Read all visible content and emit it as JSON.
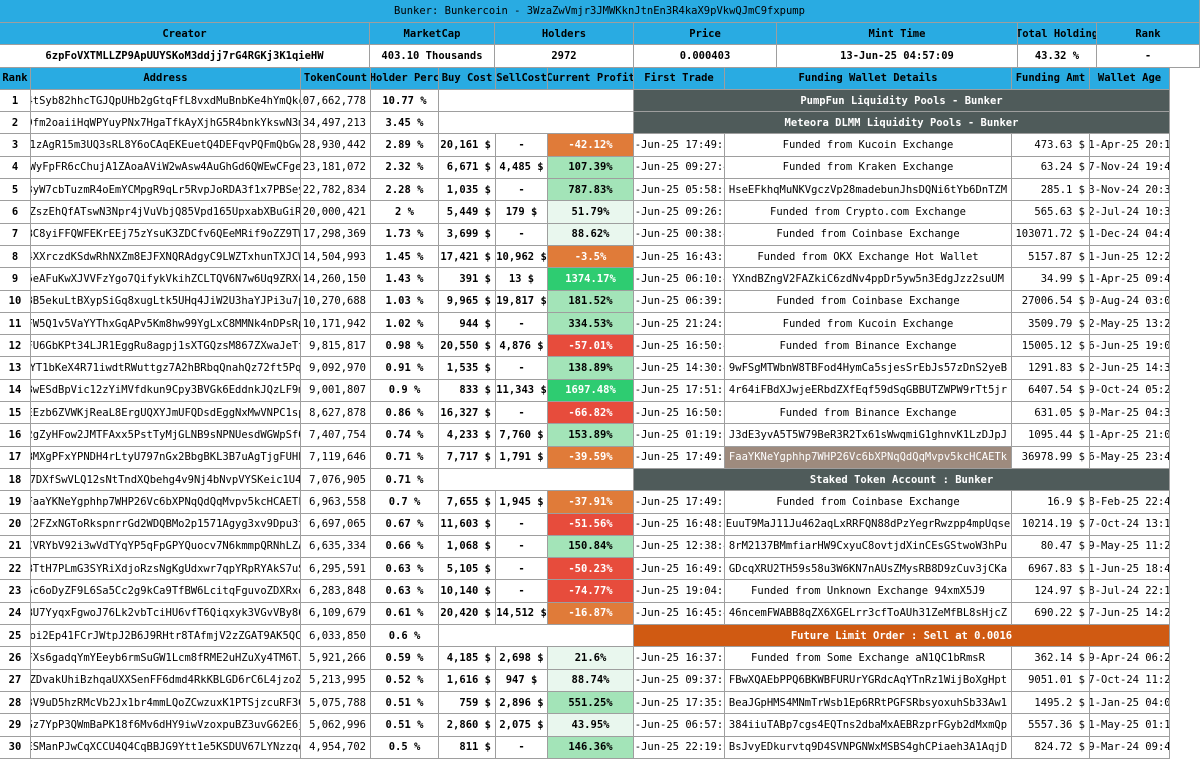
{
  "title": "Bunker: Bunkercoin - 3WzaZwVmjr3JMWKknJtnEn3R4kaX9pVkwQJmC9fxpump",
  "info_headers": [
    "Creator",
    "MarketCap",
    "Holders",
    "Price",
    "Mint Time",
    "Total Holding",
    "Rank"
  ],
  "info_values": [
    "6zpFoVXTMLLZP9ApUUYSKoM3ddjj7rG4RGKj3K1qieHW",
    "403.10 Thousands",
    "2972",
    "0.000403",
    "13-Jun-25 04:57:09",
    "43.32 %",
    "-"
  ],
  "col_headers": [
    "Rank",
    "Address",
    "TokenCount",
    "Holder Perc",
    "Buy Cost",
    "SellCost",
    "Current Profit",
    "First Trade",
    "Funding Wallet Details",
    "Funding Amt",
    "Wallet Age"
  ],
  "colors": {
    "header": "#29abe2",
    "profit_red": "#e74c3c",
    "profit_orange": "#e07b39",
    "profit_green_strong": "#2ecc71",
    "profit_green_mid": "#a3e4b8",
    "profit_green_light": "#e9f7ee",
    "span_dark": "#4f5b5a",
    "span_orange": "#d05a12",
    "highlight_fund": "#9e8b7e"
  },
  "rows": [
    {
      "rank": "1",
      "address": "4tSyb82hhcTGJQpUHb2gGtqFfL8vxdMuBnbKe4hYmQkc",
      "tokens": "107,662,778",
      "perc": "10.77 %",
      "perc_bold": true,
      "span": "PumpFun Liquidity Pools - Bunker",
      "span_style": "dark"
    },
    {
      "rank": "2",
      "address": "9fm2oaiiHqWPYuyPNx7HgaTfkAyXjhG5R4bnkYkswN3m",
      "tokens": "34,497,213",
      "perc": "3.45 %",
      "perc_bold": true,
      "span": "Meteora DLMM Liquidity Pools - Bunker",
      "span_style": "dark"
    },
    {
      "rank": "3",
      "address": "1zAgR15m3UQ3sRL8Y6oCAqEKEuetQ4DEFqvPQFmQbGw",
      "tokens": "28,930,442",
      "perc": "2.89 %",
      "buy": "20,161 $",
      "sell": "-",
      "profit": "-42.12%",
      "profit_color": "orange",
      "first": "22-Jun-25 17:49:37",
      "fund": "Funded from Kucoin Exchange",
      "fund_amt": "473.63 $",
      "age": "01-Apr-25 20:19"
    },
    {
      "rank": "4",
      "address": "WyFpFR6cChujA1ZAoaAViW2wAsw4AuGhGd6QWEwCFge",
      "tokens": "23,181,072",
      "perc": "2.32 %",
      "buy": "6,671 $",
      "sell": "4,485 $",
      "profit": "107.39%",
      "profit_color": "mid",
      "first": "13-Jun-25 09:27:47",
      "fund": "Funded from Kraken Exchange",
      "fund_amt": "63.24 $",
      "age": "17-Nov-24 19:46"
    },
    {
      "rank": "5",
      "address": "3yW7cbTuzmR4oEmYCMpgR9qLr5RvpJoRDA3f1x7PBSey",
      "tokens": "22,782,834",
      "perc": "2.28 %",
      "buy": "1,035 $",
      "sell": "-",
      "profit": "787.83%",
      "profit_color": "mid",
      "first": "13-Jun-25 05:58:06",
      "fund": "HseEFkhqMuNKVgczVp28madebunJhsDQNi6tYb6DnTZM",
      "fund_amt": "285.1 $",
      "age": "13-Nov-24 20:35"
    },
    {
      "rank": "6",
      "address": "ZszEhQfATswN3Npr4jVuVbjQ85Vpd165UpxabXBuGiR",
      "tokens": "20,000,421",
      "perc": "2 %",
      "buy": "5,449 $",
      "sell": "179 $",
      "profit": "51.79%",
      "profit_color": "light",
      "first": "13-Jun-25 09:26:52",
      "fund": "Funded from Crypto.com Exchange",
      "fund_amt": "565.63 $",
      "age": "02-Jul-24 10:35"
    },
    {
      "rank": "7",
      "address": "BC8yiFFQWFEKrEEj75zYsuK3ZDCfv6QEeMRif9oZZ9TW",
      "tokens": "17,298,369",
      "perc": "1.73 %",
      "buy": "3,699 $",
      "sell": "-",
      "profit": "88.62%",
      "profit_color": "light",
      "first": "18-Jun-25 00:38:42",
      "fund": "Funded from Coinbase Exchange",
      "fund_amt": "103071.72 $",
      "age": "21-Dec-24 04:42"
    },
    {
      "rank": "8",
      "address": "4XXrczdKSdwRhNXZm8EJFXNQRAdgyC9LWZTxhunTXJCW",
      "tokens": "14,504,993",
      "perc": "1.45 %",
      "buy": "17,421 $",
      "sell": "10,962 $",
      "profit": "-3.5%",
      "profit_color": "orange",
      "first": "22-Jun-25 16:43:58",
      "fund": "Funded from OKX Exchange Hot Wallet",
      "fund_amt": "5157.87 $",
      "age": "21-Jun-25 12:22"
    },
    {
      "rank": "9",
      "address": "6eAFuKwXJVVFzYgo7QifykVkihZCLTQV6N7w6Uq9ZRXu",
      "tokens": "14,260,150",
      "perc": "1.43 %",
      "buy": "391 $",
      "sell": "13 $",
      "profit": "1374.17%",
      "profit_color": "strong",
      "first": "13-Jun-25 06:10:48",
      "fund": "YXndBZngV2FAZkiC6zdNv4ppDr5yw5n3EdgJzz2suUM",
      "fund_amt": "34.99 $",
      "age": "21-Apr-25 09:44"
    },
    {
      "rank": "10",
      "address": "8B5ekuLtBXypSiGq8xugLtk5UHq4JiW2U3haYJPi3u7p",
      "tokens": "10,270,688",
      "perc": "1.03 %",
      "buy": "9,965 $",
      "sell": "19,817 $",
      "profit": "181.52%",
      "profit_color": "mid",
      "first": "13-Jun-25 06:39:39",
      "fund": "Funded from Coinbase Exchange",
      "fund_amt": "27006.54 $",
      "age": "30-Aug-24 03:02"
    },
    {
      "rank": "11",
      "address": "FW5Q1v5VaYYThxGqAPv5Km8hw99YgLxC8MMNk4nDPsRp",
      "tokens": "10,171,942",
      "perc": "1.02 %",
      "buy": "944 $",
      "sell": "-",
      "profit": "334.53%",
      "profit_color": "mid",
      "first": "18-Jun-25 21:24:27",
      "fund": "Funded from Kucoin Exchange",
      "fund_amt": "3509.79 $",
      "age": "12-May-25 13:22"
    },
    {
      "rank": "12",
      "address": "FU6GbKPt34LJR1EggRu8agpj1sXTGQzsM867ZXwaJeTt",
      "tokens": "9,815,817",
      "perc": "0.98 %",
      "buy": "20,550 $",
      "sell": "4,876 $",
      "profit": "-57.01%",
      "profit_color": "red",
      "first": "22-Jun-25 16:50:44",
      "fund": "Funded from Binance Exchange",
      "fund_amt": "15005.12 $",
      "age": "16-Jun-25 19:02"
    },
    {
      "rank": "13",
      "address": "CYT1bKeX4R71iwdtRWuttgz7A2hBRbqQnahQz72ft5PqB",
      "tokens": "9,092,970",
      "perc": "0.91 %",
      "buy": "1,535 $",
      "sell": "-",
      "profit": "138.89%",
      "profit_color": "mid",
      "first": "22-Jun-25 14:30:40",
      "fund": "9wFSgMTWbnW8TBFod4HymCa5sjesSrEbJs57zDnS2yeB",
      "fund_amt": "1291.83 $",
      "age": "22-Jun-25 14:30"
    },
    {
      "rank": "14",
      "address": "8wESdBpVic12zYiMVfdkun9Cpy3BVGk6EddnkJQzLF9m",
      "tokens": "9,001,807",
      "perc": "0.9 %",
      "buy": "833 $",
      "sell": "11,343 $",
      "profit": "1697.48%",
      "profit_color": "strong",
      "first": "20-Jun-25 17:51:57",
      "fund": "4r64iFBdXJwjeERbdZXfEqf59dSqGBBUTZWPW9rTt5jr",
      "fund_amt": "6407.54 $",
      "age": "19-Oct-24 05:27"
    },
    {
      "rank": "15",
      "address": "EEzb6ZVWKjReaL8ErgUQXYJmUFQDsdEggNxMwVNPC1sp",
      "tokens": "8,627,878",
      "perc": "0.86 %",
      "buy": "16,327 $",
      "sell": "-",
      "profit": "-66.82%",
      "profit_color": "red",
      "first": "22-Jun-25 16:50:32",
      "fund": "Funded from Binance Exchange",
      "fund_amt": "631.05 $",
      "age": "20-Mar-25 04:39"
    },
    {
      "rank": "16",
      "address": "2gZyHFow2JMTFAxx5PstTyMjGLNB9sNPNUesdWGWpSfQ",
      "tokens": "7,407,754",
      "perc": "0.74 %",
      "buy": "4,233 $",
      "sell": "7,760 $",
      "profit": "153.89%",
      "profit_color": "mid",
      "first": "17-Jun-25 01:19:03",
      "fund": "J3dE3yvA5T5W79BeR3R2Tx61sWwqmiG1ghnvK1LzDJpJ",
      "fund_amt": "1095.44 $",
      "age": "21-Apr-25 21:01"
    },
    {
      "rank": "17",
      "address": "BMXgPFxYPNDH4rLtyU797nGx2BbgBKL3B7uAgTjgFUHb",
      "tokens": "7,119,646",
      "perc": "0.71 %",
      "buy": "7,717 $",
      "sell": "1,791 $",
      "profit": "-39.59%",
      "profit_color": "orange",
      "first": "22-Jun-25 17:49:37",
      "fund": "FaaYKNeYgphhp7WHP26Vc6bXPNqQdQqMvpv5kcHCAETk",
      "fund_hl": true,
      "fund_amt": "36978.99 $",
      "age": "16-May-25 23:42"
    },
    {
      "rank": "18",
      "address": "7DXfSwVLQ12sNtTndXQbehg4v9Nj4bNvpVYSKeic1U4",
      "tokens": "7,076,905",
      "perc": "0.71 %",
      "span": "Staked Token Account : Bunker",
      "span_style": "dark"
    },
    {
      "rank": "19",
      "address": "FaaYKNeYgphhp7WHP26Vc6bXPNqQdQqMvpv5kcHCAETk",
      "tokens": "6,963,558",
      "perc": "0.7 %",
      "buy": "7,655 $",
      "sell": "1,945 $",
      "profit": "-37.91%",
      "profit_color": "orange",
      "first": "22-Jun-25 17:49:37",
      "fund": "Funded from Coinbase Exchange",
      "fund_amt": "16.9 $",
      "age": "08-Feb-25 22:45"
    },
    {
      "rank": "20",
      "address": "C2FZxNGToRkspnrrGd2WDQBMo2p1571Agyg3xv9Dpu3t",
      "tokens": "6,697,065",
      "perc": "0.67 %",
      "buy": "11,603 $",
      "sell": "-",
      "profit": "-51.56%",
      "profit_color": "red",
      "first": "22-Jun-25 16:48:33",
      "fund": "EuuT9MaJ11Ju462aqLxRRFQN88dPzYegrRwzpp4mpUqse",
      "fund_amt": "10214.19 $",
      "age": "27-Oct-24 13:19"
    },
    {
      "rank": "21",
      "address": "CVRYbV92i3wVdTYqYP5qFpGPYQuocv7N6kmmpQRNhLZA",
      "tokens": "6,635,334",
      "perc": "0.66 %",
      "buy": "1,068 $",
      "sell": "-",
      "profit": "150.84%",
      "profit_color": "mid",
      "first": "22-Jun-25 12:38:48",
      "fund": "8rM2137BMmfiarHW9CxyuC8ovtjdXinCEsGStwoW3hPu",
      "fund_amt": "80.47 $",
      "age": "09-May-25 11:29"
    },
    {
      "rank": "22",
      "address": "BTtH7PLmG3SYRiXdjoRzsNgKgUdxwr7qpYRpRYAkS7uS",
      "tokens": "6,295,591",
      "perc": "0.63 %",
      "buy": "5,105 $",
      "sell": "-",
      "profit": "-50.23%",
      "profit_color": "red",
      "first": "22-Jun-25 16:49:38",
      "fund": "GDcqXRU2TH59s58u3W6KN7nAUsZMysRB8D9zCuv3jCKa",
      "fund_amt": "6967.83 $",
      "age": "11-Jun-25 18:40"
    },
    {
      "rank": "23",
      "address": "6c6oDyZF9L6Sa5Cc2g9kCa9TfBW6LcitqFguvoZDXRxd",
      "tokens": "6,283,848",
      "perc": "0.63 %",
      "buy": "10,140 $",
      "sell": "-",
      "profit": "-74.77%",
      "profit_color": "red",
      "first": "22-Jun-25 19:04:22",
      "fund": "Funded from Unknown Exchange 94xmX5J9",
      "fund_amt": "124.97 $",
      "age": "08-Jul-24 22:13"
    },
    {
      "rank": "24",
      "address": "BU7YyqxFgwoJ76Lk2vbTciHU6vfT6Qiqxyk3VGvVBy86",
      "tokens": "6,109,679",
      "perc": "0.61 %",
      "buy": "20,420 $",
      "sell": "14,512 $",
      "profit": "-16.87%",
      "profit_color": "orange",
      "first": "22-Jun-25 16:45:41",
      "fund": "46ncemFWABB8qZX6XGELrr3cfToAUh31ZeMfBL8sHjcZ",
      "fund_amt": "690.22 $",
      "age": "17-Jun-25 14:24"
    },
    {
      "rank": "25",
      "address": "oi2Ep41FCrJWtpJ2B6J9RHtr8TAfmjV2zZGAT9AK5QC",
      "tokens": "6,033,850",
      "perc": "0.6 %",
      "span": "Future Limit Order : Sell at 0.0016",
      "span_style": "orange"
    },
    {
      "rank": "26",
      "address": "FXs6gadqYmYEeyb6rmSuGW1Lcm8fRME2uHZuXy4TM6TJ",
      "tokens": "5,921,266",
      "perc": "0.59 %",
      "buy": "4,185 $",
      "sell": "2,698 $",
      "profit": "21.6%",
      "profit_color": "light",
      "first": "22-Jun-25 16:37:27",
      "fund": "Funded from Some Exchange aN1QC1bRmsR",
      "fund_amt": "362.14 $",
      "age": "09-Apr-24 06:22"
    },
    {
      "rank": "27",
      "address": "ZDvakUhiBzhqaUXXSenFF6dmd4RkKBLGD6rC6L4jzoZ",
      "tokens": "5,213,995",
      "perc": "0.52 %",
      "buy": "1,616 $",
      "sell": "947 $",
      "profit": "88.74%",
      "profit_color": "light",
      "first": "17-Jun-25 09:37:16",
      "fund": "FBwXQAEbPPQ6BKWBFURUrYGRdcAqYTnRz1WijBoXgHpt",
      "fund_amt": "9051.01 $",
      "age": "07-Oct-24 11:24"
    },
    {
      "rank": "28",
      "address": "3V9uD5hzRMcVb2Jx1br4mmLQoZCwzuxK1PTSjzcuRF3G",
      "tokens": "5,075,788",
      "perc": "0.51 %",
      "buy": "759 $",
      "sell": "2,896 $",
      "profit": "551.25%",
      "profit_color": "mid",
      "first": "17-Jun-25 17:35:29",
      "fund": "BeaJGpHMS4MNmTrWsb1Ep6RRtPGFSRbsyoxuhSb33Aw1",
      "fund_amt": "1495.2 $",
      "age": "21-Jan-25 04:07"
    },
    {
      "rank": "29",
      "address": "Gz7YpP3QWmBaPK18f6Mv6dHY9iwVzoxpuBZ3uvG62E6j",
      "tokens": "5,062,996",
      "perc": "0.51 %",
      "buy": "2,860 $",
      "sell": "2,075 $",
      "profit": "43.95%",
      "profit_color": "light",
      "first": "13-Jun-25 06:57:23",
      "fund": "384iiuTABp7cgs4EQTns2dbaMxAEBRzprFGyb2dMxmQp",
      "fund_amt": "5557.36 $",
      "age": "01-May-25 01:10"
    },
    {
      "rank": "30",
      "address": "ESManPJwCqXCCU4Q4CqBBJG9Ytt1e5KSDUV67LYNzzqd",
      "tokens": "4,954,702",
      "perc": "0.5 %",
      "buy": "811 $",
      "sell": "-",
      "profit": "146.36%",
      "profit_color": "mid",
      "first": "17-Jun-25 22:19:08",
      "fund": "BsJvyEDkurvtq9D4SVNPGNWxMSBS4ghCPiaeh3A1AqjD",
      "fund_amt": "824.72 $",
      "age": "29-Mar-24 09:40"
    }
  ]
}
